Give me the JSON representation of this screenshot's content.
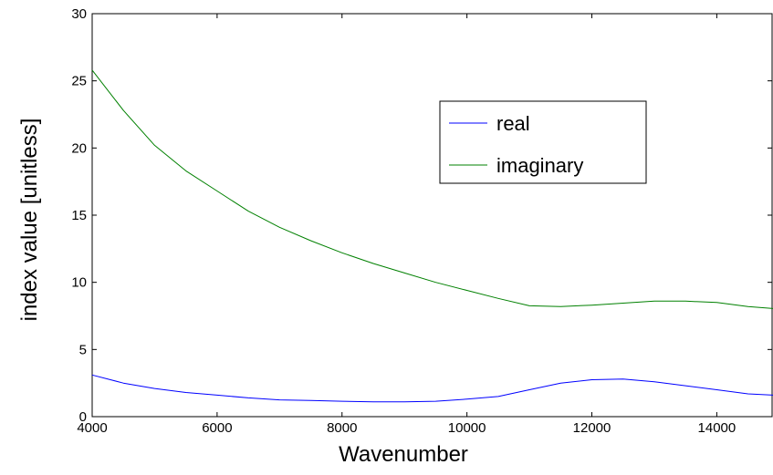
{
  "chart_data": {
    "type": "line",
    "title": "",
    "xlabel": "Wavenumber",
    "ylabel": "index value [unitless]",
    "xlim": [
      4000,
      14900
    ],
    "ylim": [
      0,
      30
    ],
    "xticks": [
      4000,
      6000,
      8000,
      10000,
      12000,
      14000
    ],
    "yticks": [
      0,
      5,
      10,
      15,
      20,
      25,
      30
    ],
    "xtick_labels": [
      "4000",
      "6000",
      "8000",
      "10000",
      "12000",
      "14000"
    ],
    "ytick_labels": [
      "0",
      "5",
      "10",
      "15",
      "20",
      "25",
      "30"
    ],
    "grid": false,
    "legend_position": "upper-right",
    "series": [
      {
        "name": "real",
        "color": "#0000ff",
        "x": [
          4000,
          4500,
          5000,
          5500,
          6000,
          6500,
          7000,
          7500,
          8000,
          8500,
          9000,
          9500,
          10000,
          10500,
          11000,
          11500,
          12000,
          12500,
          13000,
          13500,
          14000,
          14500,
          14900
        ],
        "y": [
          3.1,
          2.5,
          2.1,
          1.8,
          1.6,
          1.4,
          1.25,
          1.2,
          1.15,
          1.1,
          1.1,
          1.15,
          1.3,
          1.5,
          2.0,
          2.5,
          2.75,
          2.8,
          2.6,
          2.3,
          2.0,
          1.7,
          1.6
        ]
      },
      {
        "name": "imaginary",
        "color": "#008000",
        "x": [
          4000,
          4500,
          5000,
          5500,
          6000,
          6500,
          7000,
          7500,
          8000,
          8500,
          9000,
          9500,
          10000,
          10500,
          11000,
          11500,
          12000,
          12500,
          13000,
          13500,
          14000,
          14500,
          14900
        ],
        "y": [
          25.8,
          22.8,
          20.2,
          18.3,
          16.8,
          15.3,
          14.1,
          13.1,
          12.2,
          11.4,
          10.7,
          10.0,
          9.4,
          8.8,
          8.25,
          8.2,
          8.3,
          8.45,
          8.6,
          8.6,
          8.5,
          8.2,
          8.05
        ]
      }
    ]
  }
}
